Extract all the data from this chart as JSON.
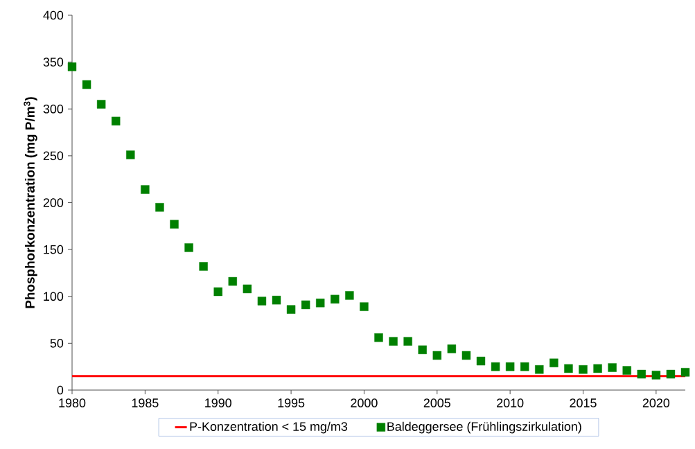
{
  "chart_data": {
    "type": "scatter",
    "ylabel": "Phosphorkonzentration (mg P/m$^{3}$)",
    "xlim": [
      1980,
      2022
    ],
    "xticks": [
      1980,
      1985,
      1990,
      1995,
      2000,
      2005,
      2010,
      2015,
      2020
    ],
    "ylim": [
      0,
      400
    ],
    "yticks": [
      0,
      50,
      100,
      150,
      200,
      250,
      300,
      350,
      400
    ],
    "legend": "bottom",
    "x": [
      1980,
      1981,
      1982,
      1983,
      1984,
      1985,
      1986,
      1987,
      1988,
      1989,
      1990,
      1991,
      1992,
      1993,
      1994,
      1995,
      1996,
      1997,
      1998,
      1999,
      2000,
      2001,
      2002,
      2003,
      2004,
      2005,
      2006,
      2007,
      2008,
      2009,
      2010,
      2011,
      2012,
      2013,
      2014,
      2015,
      2016,
      2017,
      2018,
      2019,
      2020,
      2021,
      2022
    ],
    "series": [
      {
        "name": "P-Konzentration < 15 mg/m3",
        "type": "line",
        "line_style": "solid",
        "color": "#ff0000",
        "x": [
          1980,
          2022
        ],
        "values": [
          15,
          15
        ]
      },
      {
        "name": "Baldeggersee (Frühlingszirkulation)",
        "marker": "square",
        "color": "#008000",
        "values": [
          345,
          326,
          305,
          287,
          251,
          214,
          195,
          177,
          152,
          132,
          105,
          116,
          108,
          95,
          96,
          86,
          91,
          93,
          97,
          101,
          89,
          56,
          52,
          52,
          43,
          37,
          44,
          37,
          31,
          25,
          25,
          25,
          22,
          29,
          23,
          22,
          23,
          24,
          21,
          17,
          16,
          17,
          19
        ]
      }
    ]
  }
}
